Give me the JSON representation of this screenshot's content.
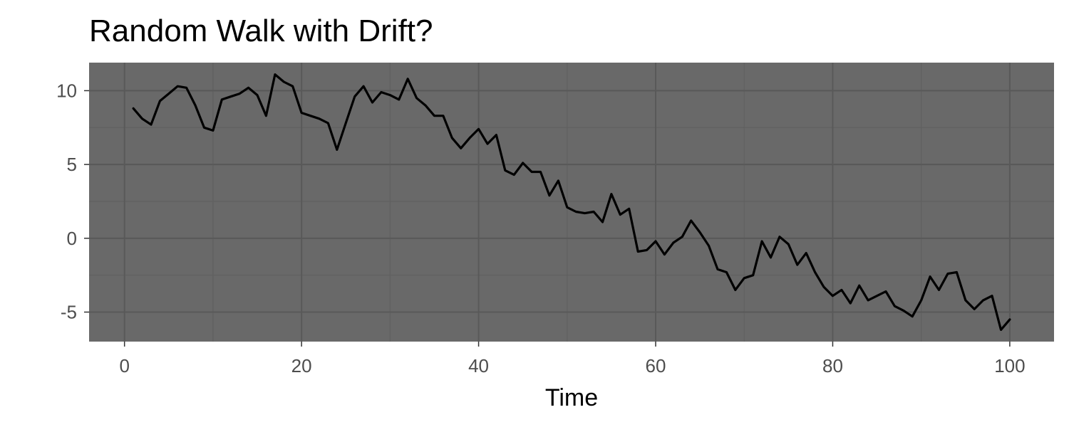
{
  "chart_data": {
    "type": "line",
    "title": "Random Walk with Drift?",
    "xlabel": "Time",
    "ylabel": "",
    "xlim": [
      -4,
      105
    ],
    "ylim": [
      -7,
      11.9
    ],
    "x_ticks": [
      0,
      20,
      40,
      60,
      80,
      100
    ],
    "y_ticks": [
      10,
      5,
      0,
      -5
    ],
    "y_tick_labels": [
      "10",
      "5",
      "0",
      "-5"
    ],
    "x_tick_labels": [
      "0",
      "20",
      "40",
      "60",
      "80",
      "100"
    ],
    "grid": true,
    "panel_color": "#696969",
    "major_grid_color": "#595959",
    "minor_grid_color": "#606060",
    "line_color": "#000000",
    "series": [
      {
        "x": [
          1,
          2,
          3,
          4,
          5,
          6,
          7,
          8,
          9,
          10,
          11,
          12,
          13,
          14,
          15,
          16,
          17,
          18,
          19,
          20,
          21,
          22,
          23,
          24,
          25,
          26,
          27,
          28,
          29,
          30,
          31,
          32,
          33,
          34,
          35,
          36,
          37,
          38,
          39,
          40,
          41,
          42,
          43,
          44,
          45,
          46,
          47,
          48,
          49,
          50,
          51,
          52,
          53,
          54,
          55,
          56,
          57,
          58,
          59,
          60,
          61,
          62,
          63,
          64,
          65,
          66,
          67,
          68,
          69,
          70,
          71,
          72,
          73,
          74,
          75,
          76,
          77,
          78,
          79,
          80,
          81,
          82,
          83,
          84,
          85,
          86,
          87,
          88,
          89,
          90,
          91,
          92,
          93,
          94,
          95,
          96,
          97,
          98,
          99,
          100
        ],
        "values": [
          8.8,
          8.1,
          7.7,
          9.3,
          9.8,
          10.3,
          10.2,
          9.0,
          7.5,
          7.3,
          9.4,
          9.6,
          9.8,
          10.2,
          9.7,
          8.3,
          11.1,
          10.6,
          10.3,
          8.5,
          8.3,
          8.1,
          7.8,
          6.0,
          7.8,
          9.6,
          10.3,
          9.2,
          9.9,
          9.7,
          9.4,
          10.8,
          9.5,
          9.0,
          8.3,
          8.3,
          6.8,
          6.1,
          6.8,
          7.4,
          6.4,
          7.0,
          4.6,
          4.3,
          5.1,
          4.5,
          4.5,
          2.9,
          3.9,
          2.1,
          1.8,
          1.7,
          1.8,
          1.1,
          3.0,
          1.6,
          2.0,
          -0.9,
          -0.8,
          -0.2,
          -1.1,
          -0.3,
          0.1,
          1.2,
          0.4,
          -0.5,
          -2.1,
          -2.3,
          -3.5,
          -2.7,
          -2.5,
          -0.2,
          -1.3,
          0.1,
          -0.4,
          -1.8,
          -1.0,
          -2.3,
          -3.3,
          -3.9,
          -3.5,
          -4.4,
          -3.2,
          -4.2,
          -3.9,
          -3.6,
          -4.6,
          -4.9,
          -5.3,
          -4.2,
          -2.6,
          -3.5,
          -2.4,
          -2.3,
          -4.2,
          -4.8,
          -4.2,
          -3.9,
          -6.2,
          -5.5
        ]
      }
    ]
  }
}
